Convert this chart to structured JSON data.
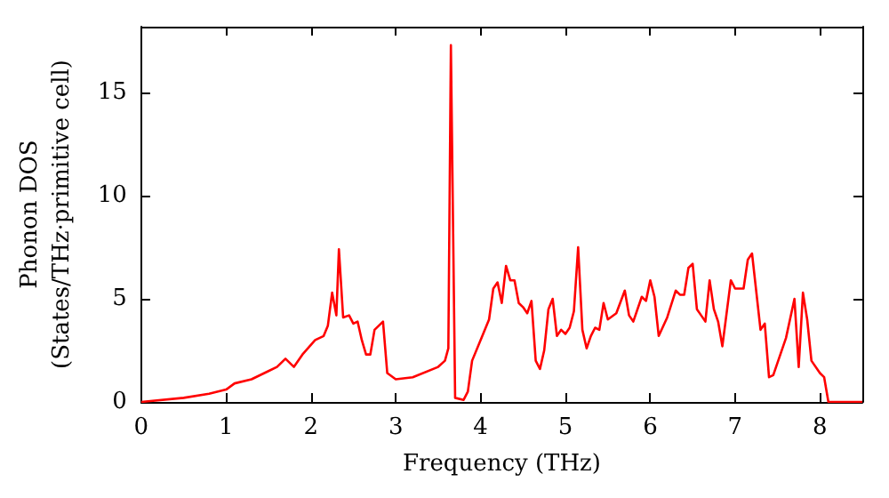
{
  "chart_data": {
    "type": "line",
    "xlabel": "Frequency (THz)",
    "ylabel": "Phonon DOS\n(States/THz·primitive cell)",
    "xlim": [
      0,
      8.5
    ],
    "xticks": [
      0,
      1,
      2,
      3,
      4,
      5,
      6,
      7,
      8
    ],
    "ylim": [
      0,
      18.2
    ],
    "yticks": [
      0,
      5,
      10,
      15
    ],
    "grid": false,
    "marker": "none",
    "line_style": "solid",
    "series": [
      {
        "color": "#ff0000",
        "x": [
          0,
          0.5,
          0.8,
          1.0,
          1.1,
          1.3,
          1.5,
          1.6,
          1.7,
          1.8,
          1.9,
          2.05,
          2.15,
          2.2,
          2.25,
          2.3,
          2.33,
          2.38,
          2.45,
          2.5,
          2.55,
          2.6,
          2.65,
          2.7,
          2.75,
          2.85,
          2.9,
          3.0,
          3.2,
          3.5,
          3.58,
          3.62,
          3.65,
          3.7,
          3.8,
          3.85,
          3.9,
          4.0,
          4.1,
          4.15,
          4.2,
          4.25,
          4.3,
          4.35,
          4.4,
          4.45,
          4.5,
          4.55,
          4.6,
          4.65,
          4.7,
          4.75,
          4.8,
          4.85,
          4.9,
          4.95,
          5.0,
          5.05,
          5.1,
          5.15,
          5.2,
          5.25,
          5.3,
          5.35,
          5.4,
          5.45,
          5.5,
          5.6,
          5.7,
          5.75,
          5.8,
          5.9,
          5.95,
          6.0,
          6.05,
          6.1,
          6.2,
          6.3,
          6.35,
          6.4,
          6.45,
          6.5,
          6.55,
          6.6,
          6.65,
          6.7,
          6.75,
          6.8,
          6.85,
          6.95,
          7.0,
          7.1,
          7.15,
          7.2,
          7.3,
          7.35,
          7.4,
          7.45,
          7.6,
          7.7,
          7.75,
          7.8,
          7.85,
          7.9,
          8.0,
          8.05,
          8.1,
          8.5
        ],
        "values": [
          0,
          0.2,
          0.4,
          0.6,
          0.9,
          1.1,
          1.5,
          1.7,
          2.1,
          1.7,
          2.3,
          3.0,
          3.2,
          3.7,
          5.3,
          4.2,
          7.4,
          4.1,
          4.2,
          3.8,
          3.9,
          3.0,
          2.3,
          2.3,
          3.5,
          3.9,
          1.4,
          1.1,
          1.2,
          1.7,
          2.0,
          2.6,
          17.3,
          0.2,
          0.1,
          0.5,
          2.0,
          3.0,
          4.0,
          5.5,
          5.8,
          4.8,
          6.6,
          5.9,
          5.9,
          4.8,
          4.6,
          4.3,
          4.9,
          2.0,
          1.6,
          2.5,
          4.5,
          5.0,
          3.2,
          3.5,
          3.3,
          3.6,
          4.4,
          7.5,
          3.5,
          2.6,
          3.2,
          3.6,
          3.5,
          4.8,
          4.0,
          4.3,
          5.4,
          4.2,
          3.9,
          5.1,
          4.9,
          5.9,
          5.1,
          3.2,
          4.1,
          5.4,
          5.2,
          5.2,
          6.5,
          6.7,
          4.5,
          4.2,
          3.9,
          5.9,
          4.5,
          3.9,
          2.7,
          5.9,
          5.5,
          5.5,
          6.9,
          7.2,
          3.5,
          3.8,
          1.2,
          1.3,
          3.1,
          5.0,
          1.7,
          5.3,
          4.0,
          2.0,
          1.4,
          1.2,
          0.0,
          0.0
        ]
      }
    ]
  }
}
